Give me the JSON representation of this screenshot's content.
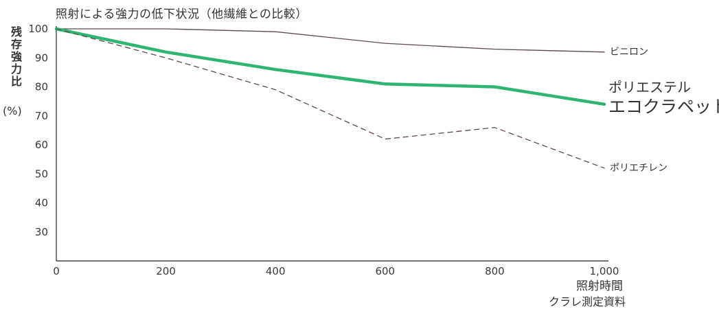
{
  "chart_data": {
    "type": "line",
    "title": "照射による強力の低下状況（他繊維との比較）",
    "ylabel": "残存強力比",
    "yunit": "(%)",
    "xlabel": "照射時間",
    "source": "クラレ測定資料",
    "x": [
      0,
      200,
      400,
      600,
      800,
      1000
    ],
    "xticks": [
      "0",
      "200",
      "400",
      "600",
      "800",
      "1,000"
    ],
    "yticks": [
      30,
      40,
      50,
      60,
      70,
      80,
      90,
      100
    ],
    "ylim": [
      20,
      100
    ],
    "xlim": [
      0,
      1000
    ],
    "series": [
      {
        "name": "ビニロン",
        "values": [
          100,
          100,
          99,
          95,
          93,
          92
        ],
        "color": "#5a4a4a",
        "style": "solid-thin"
      },
      {
        "name": "ポリエステル",
        "name2": "エコクラペット",
        "values": [
          100,
          92,
          86,
          81,
          80,
          74
        ],
        "color": "#2fb573",
        "style": "solid-thick"
      },
      {
        "name": "ポリエチレン",
        "values": [
          100,
          90,
          79,
          62,
          66,
          52
        ],
        "color": "#5a4a4a",
        "style": "dashed"
      }
    ]
  }
}
